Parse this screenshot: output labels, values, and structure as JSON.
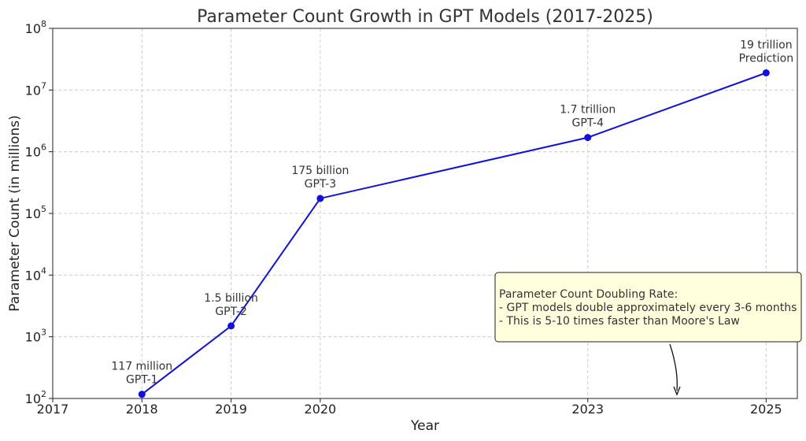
{
  "chart_data": {
    "type": "line",
    "title": "Parameter Count Growth in GPT Models (2017-2025)",
    "xlabel": "Year",
    "ylabel": "Parameter Count (in millions)",
    "xlim": [
      2017,
      2025.35
    ],
    "ylim": [
      100,
      100000000
    ],
    "yscale": "log",
    "grid": true,
    "line_color": "#1111dd",
    "x_ticks": [
      "2017",
      "2018",
      "2019",
      "2020",
      "2023",
      "2025"
    ],
    "y_ticks": [
      {
        "exp": 2,
        "label_base": "10",
        "label_exp": "2"
      },
      {
        "exp": 3,
        "label_base": "10",
        "label_exp": "3"
      },
      {
        "exp": 4,
        "label_base": "10",
        "label_exp": "4"
      },
      {
        "exp": 5,
        "label_base": "10",
        "label_exp": "5"
      },
      {
        "exp": 6,
        "label_base": "10",
        "label_exp": "6"
      },
      {
        "exp": 7,
        "label_base": "10",
        "label_exp": "7"
      },
      {
        "exp": 8,
        "label_base": "10",
        "label_exp": "8"
      }
    ],
    "points": [
      {
        "x": 2018,
        "y": 117,
        "label1": "117 million",
        "label2": "GPT-1"
      },
      {
        "x": 2019,
        "y": 1500,
        "label1": "1.5 billion",
        "label2": "GPT-2"
      },
      {
        "x": 2020,
        "y": 175000,
        "label1": "175 billion",
        "label2": "GPT-3"
      },
      {
        "x": 2023,
        "y": 1700000,
        "label1": "1.7 trillion",
        "label2": "GPT-4"
      },
      {
        "x": 2025,
        "y": 19000000,
        "label1": "19 trillion",
        "label2": "Prediction"
      }
    ],
    "note": {
      "lines": [
        "Parameter Count Doubling Rate:",
        "- GPT models double approximately every 3-6 months",
        "- This is 5-10 times faster than Moore's Law"
      ],
      "box_color": "#ffffdd"
    }
  }
}
